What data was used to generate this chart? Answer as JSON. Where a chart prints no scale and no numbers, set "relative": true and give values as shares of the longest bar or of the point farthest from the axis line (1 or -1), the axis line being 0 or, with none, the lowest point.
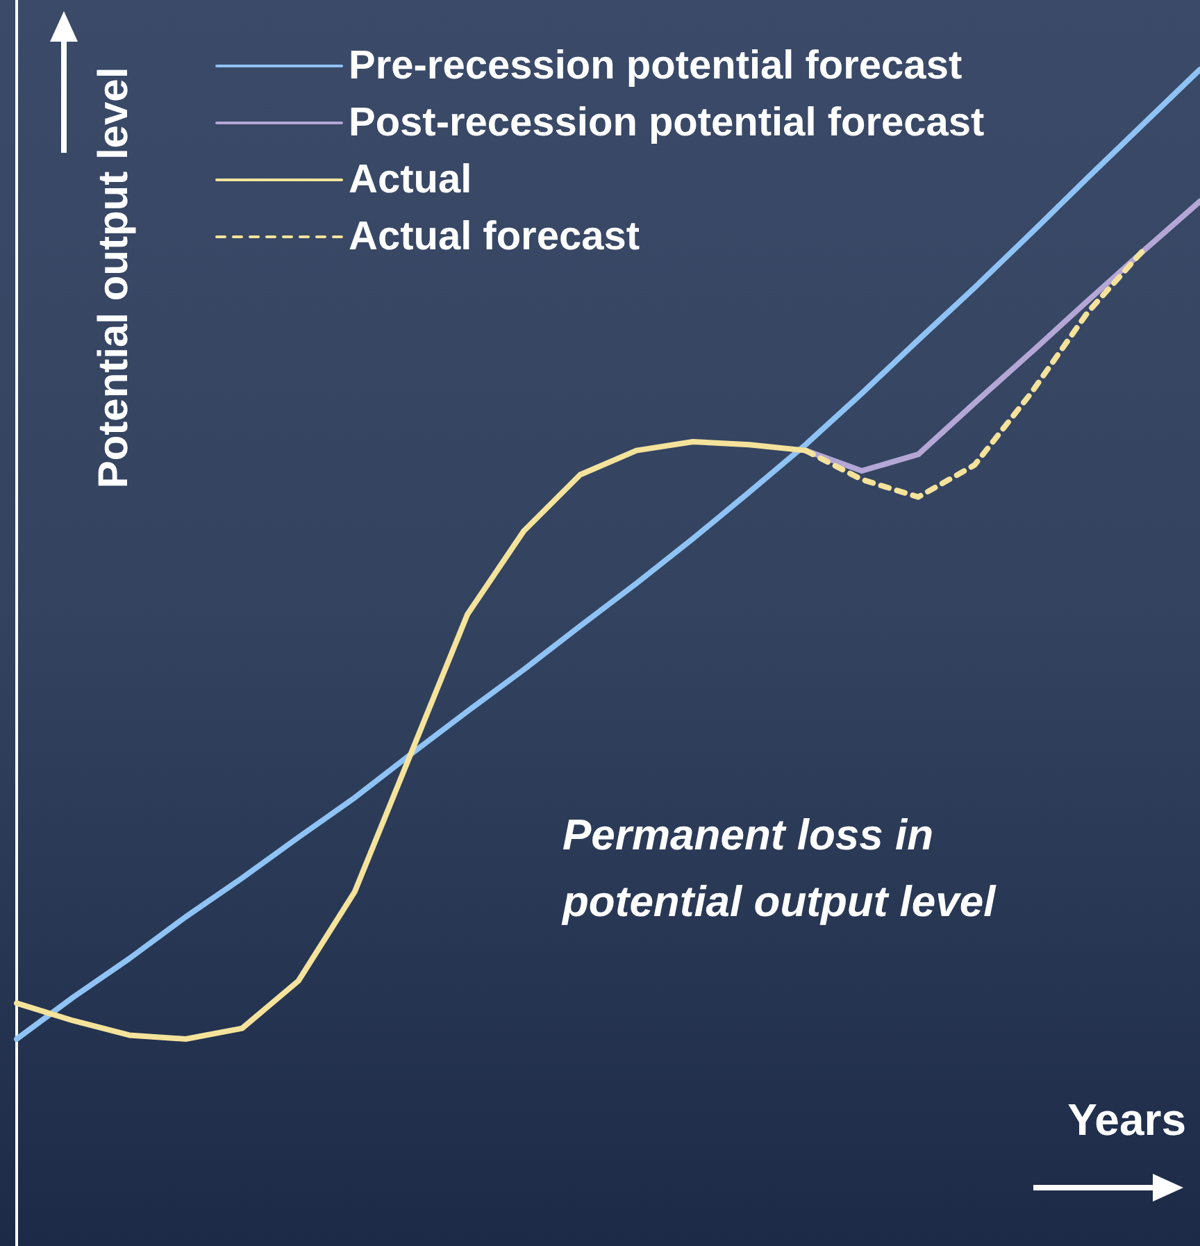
{
  "chart_data": {
    "type": "line",
    "relative": true,
    "xlabel": "Years",
    "ylabel": "Potential output level",
    "legend": "top left",
    "grid": false,
    "marker": "none",
    "categories": [
      null,
      null,
      null,
      null,
      null,
      null,
      null,
      null,
      null,
      null,
      null,
      null,
      null,
      null,
      null,
      null,
      null,
      null,
      null,
      null,
      null,
      null
    ],
    "annotations": [
      "Permanent loss in\npotential output level"
    ],
    "series": [
      {
        "name": "Pre-recession potential forecast",
        "color": "#8fc3f5",
        "values": [
          0,
          0.043,
          0.083,
          0.126,
          0.166,
          0.208,
          0.249,
          0.294,
          0.338,
          0.381,
          0.426,
          0.47,
          0.516,
          0.564,
          0.613,
          0.666,
          0.721,
          0.775,
          0.831,
          0.888,
          0.944,
          1
        ]
      },
      {
        "name": "Post-recession potential forecast",
        "color": "#b4a7d6",
        "values": [
          null,
          null,
          null,
          null,
          null,
          null,
          null,
          null,
          null,
          null,
          null,
          null,
          null,
          null,
          0.607,
          0.586,
          0.603,
          0.656,
          0.708,
          0.761,
          0.813,
          0.864
        ]
      },
      {
        "name": "Actual",
        "color": "#f5e39b",
        "values": [
          0.037,
          0.019,
          0.004,
          0,
          0.011,
          0.06,
          0.152,
          0.295,
          0.438,
          0.524,
          0.582,
          0.607,
          0.616,
          0.613,
          0.607,
          null,
          null,
          null,
          null,
          null,
          null,
          null
        ]
      },
      {
        "name": "Actual forecast",
        "color": "#f5e39b",
        "line_style": "dashed",
        "values": [
          null,
          null,
          null,
          null,
          null,
          null,
          null,
          null,
          null,
          null,
          null,
          null,
          null,
          null,
          0.607,
          0.577,
          0.559,
          0.592,
          0.666,
          0.749,
          0.814,
          null
        ]
      }
    ]
  }
}
